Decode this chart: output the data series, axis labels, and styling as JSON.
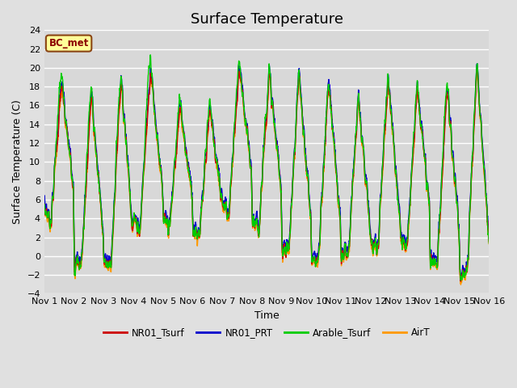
{
  "title": "Surface Temperature",
  "ylabel": "Surface Temperature (C)",
  "xlabel": "Time",
  "annotation": "BC_met",
  "ylim": [
    -4,
    24
  ],
  "yticks": [
    -4,
    -2,
    0,
    2,
    4,
    6,
    8,
    10,
    12,
    14,
    16,
    18,
    20,
    22,
    24
  ],
  "xtick_labels": [
    "Nov 1",
    "Nov 2",
    "Nov 3",
    "Nov 4",
    "Nov 5",
    "Nov 6",
    "Nov 7",
    "Nov 8",
    "Nov 9",
    "Nov 10",
    "Nov 11",
    "Nov 12",
    "Nov 13",
    "Nov 14",
    "Nov 15",
    "Nov 16"
  ],
  "series_colors": {
    "NR01_Tsurf": "#cc0000",
    "NR01_PRT": "#0000cc",
    "Arable_Tsurf": "#00cc00",
    "AirT": "#ff9900"
  },
  "background_color": "#e0e0e0",
  "plot_bg_color": "#d8d8d8",
  "grid_color": "#ffffff",
  "title_fontsize": 13,
  "label_fontsize": 9,
  "tick_fontsize": 8,
  "linewidth": 1.0,
  "day_peaks": [
    18,
    17,
    19,
    20,
    16,
    16,
    20,
    19.5,
    19,
    19,
    17,
    19,
    18,
    18,
    20
  ],
  "day_troughs": [
    5,
    -1,
    -1,
    4,
    4,
    3,
    6,
    4,
    1,
    -0.5,
    0,
    1,
    2,
    -0.5,
    -2
  ],
  "arable_extra": [
    2,
    2,
    1.5,
    3,
    1.5,
    1.5,
    1.5,
    1,
    0.5,
    0.5,
    0.5,
    1,
    1,
    1.5,
    1
  ]
}
